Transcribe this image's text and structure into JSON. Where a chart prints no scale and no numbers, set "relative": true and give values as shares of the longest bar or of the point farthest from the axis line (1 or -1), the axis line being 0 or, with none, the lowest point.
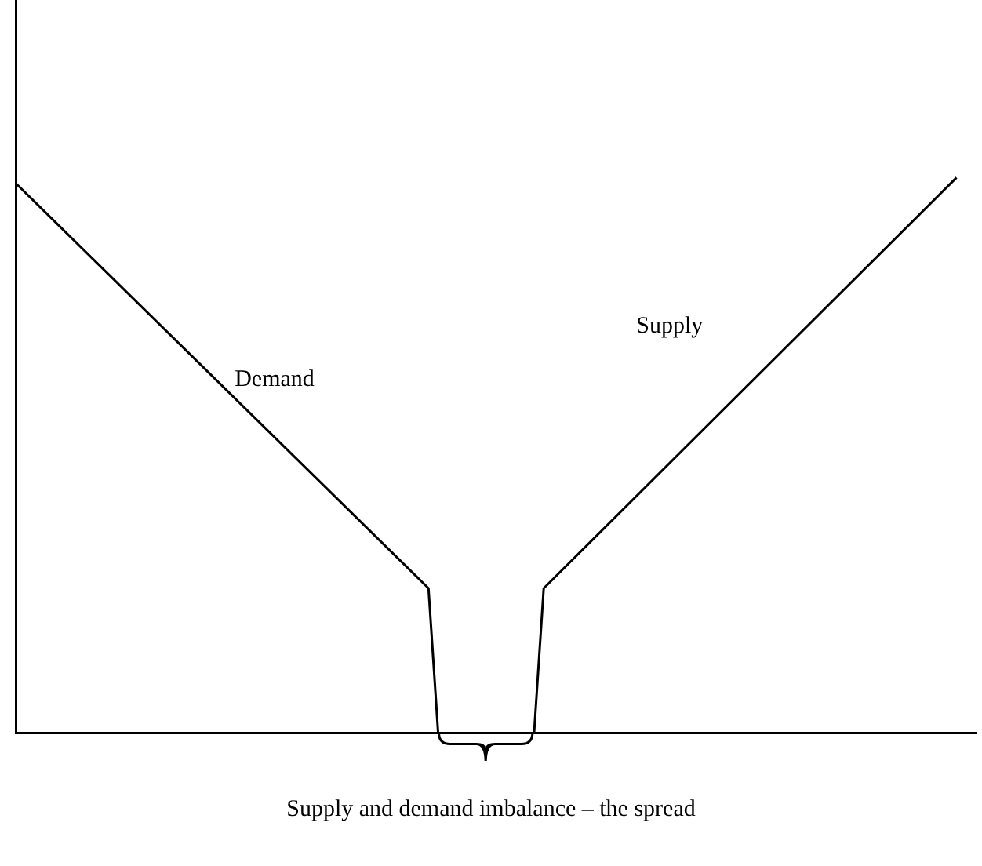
{
  "chart_data": {
    "type": "line",
    "relative": true,
    "tick_labels": false,
    "grid": false,
    "legend": false,
    "marker": "none",
    "line_style": "solid",
    "categories": [
      null,
      null,
      null,
      null,
      null,
      null,
      null,
      null,
      null,
      null,
      null,
      null,
      null,
      null,
      null,
      null,
      null,
      null,
      null,
      null,
      null,
      null,
      null,
      null,
      null,
      null,
      null,
      null,
      null,
      null,
      null,
      null,
      null,
      null,
      null,
      null,
      null,
      null,
      null,
      null,
      null,
      null,
      null,
      null,
      null,
      null,
      null,
      null,
      null,
      null,
      null,
      null,
      null,
      null,
      null,
      null,
      null,
      null,
      null,
      null,
      null,
      null,
      null,
      null,
      null,
      null,
      null,
      null,
      null,
      null,
      null,
      null,
      null,
      null,
      null,
      null,
      null,
      null,
      null,
      null,
      null,
      null,
      null,
      null,
      null,
      null,
      null,
      null,
      null,
      null,
      null,
      null,
      null,
      null,
      null,
      null,
      null,
      null,
      null,
      null,
      null
    ],
    "series": [
      {
        "name": "Demand",
        "color": "#000000",
        "values": [
          0.99,
          null,
          null,
          null,
          null,
          null,
          null,
          null,
          null,
          null,
          null,
          null,
          null,
          null,
          null,
          null,
          null,
          null,
          null,
          null,
          null,
          null,
          null,
          null,
          null,
          null,
          null,
          null,
          null,
          null,
          null,
          null,
          null,
          null,
          null,
          null,
          null,
          null,
          null,
          null,
          null,
          null,
          null,
          0.26,
          0,
          null,
          null,
          null,
          null,
          null,
          null,
          null,
          null,
          null,
          null,
          null,
          null,
          null,
          null,
          null,
          null,
          null,
          null,
          null,
          null,
          null,
          null,
          null,
          null,
          null,
          null,
          null,
          null,
          null,
          null,
          null,
          null,
          null,
          null,
          null,
          null,
          null,
          null,
          null,
          null,
          null,
          null,
          null,
          null,
          null,
          null,
          null,
          null,
          null,
          null,
          null,
          null,
          null,
          null,
          null,
          null
        ]
      },
      {
        "name": "Supply",
        "color": "#000000",
        "values": [
          null,
          null,
          null,
          null,
          null,
          null,
          null,
          null,
          null,
          null,
          null,
          null,
          null,
          null,
          null,
          null,
          null,
          null,
          null,
          null,
          null,
          null,
          null,
          null,
          null,
          null,
          null,
          null,
          null,
          null,
          null,
          null,
          null,
          null,
          null,
          null,
          null,
          null,
          null,
          null,
          null,
          null,
          null,
          null,
          null,
          null,
          null,
          null,
          null,
          null,
          null,
          null,
          null,
          null,
          0,
          0.26,
          null,
          null,
          null,
          null,
          null,
          null,
          null,
          null,
          null,
          null,
          null,
          null,
          null,
          null,
          null,
          null,
          null,
          null,
          null,
          null,
          null,
          null,
          null,
          null,
          null,
          null,
          null,
          null,
          null,
          null,
          null,
          null,
          null,
          null,
          null,
          null,
          null,
          null,
          null,
          null,
          null,
          null,
          1,
          null,
          null
        ]
      }
    ],
    "annotations": [
      "Supply and demand imbalance – the spread"
    ]
  }
}
